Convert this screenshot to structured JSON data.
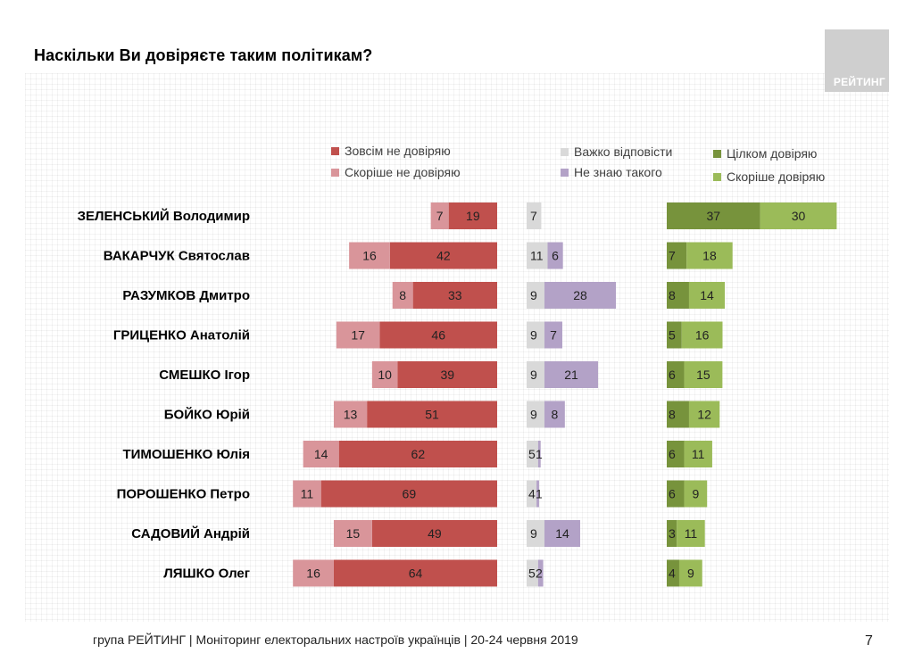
{
  "page_title": "Наскільки Ви довіряєте таким політикам?",
  "logo_text": "РЕЙТИНГ",
  "footer": "група РЕЙТИНГ | Моніторинг електоральних настроїв українців | 20-24 червня 2019",
  "page_number": "7",
  "legend": {
    "full_distrust": "Зовсім не довіряю",
    "rather_distrust": "Скоріше не довіряю",
    "hard_to_say": "Важко відповісти",
    "dont_know": "Не знаю такого",
    "full_trust": "Цілком довіряю",
    "rather_trust": "Скоріше довіряю"
  },
  "colors": {
    "full_distrust": "#c0504d",
    "rather_distrust": "#d9959a",
    "hard_to_say": "#d9d9d9",
    "dont_know": "#b3a2c7",
    "full_trust": "#77933c",
    "rather_trust": "#9bbb59"
  },
  "chart_data": {
    "type": "bar",
    "categories": [
      "ЗЕЛЕНСЬКИЙ Володимир",
      "ВАКАРЧУК Святослав",
      "РАЗУМКОВ Дмитро",
      "ГРИЦЕНКО Анатолій",
      "СМЕШКО Ігор",
      "БОЙКО Юрій",
      "ТИМОШЕНКО Юлія",
      "ПОРОШЕНКО Петро",
      "САДОВИЙ Андрій",
      "ЛЯШКО Олег"
    ],
    "series": [
      {
        "name": "Зовсім не довіряю",
        "key": "full_distrust",
        "values": [
          19,
          42,
          33,
          46,
          39,
          51,
          62,
          69,
          49,
          64
        ]
      },
      {
        "name": "Скоріше не довіряю",
        "key": "rather_distrust",
        "values": [
          7,
          16,
          8,
          17,
          10,
          13,
          14,
          11,
          15,
          16
        ]
      },
      {
        "name": "Важко відповісти",
        "key": "hard_to_say",
        "values": [
          7,
          11,
          9,
          9,
          9,
          9,
          5,
          4,
          9,
          5
        ]
      },
      {
        "name": "Не знаю такого",
        "key": "dont_know",
        "values": [
          0,
          6,
          28,
          7,
          21,
          8,
          1,
          1,
          14,
          2
        ]
      },
      {
        "name": "Цілком довіряю",
        "key": "full_trust",
        "values": [
          37,
          7,
          8,
          5,
          6,
          8,
          6,
          6,
          3,
          4
        ]
      },
      {
        "name": "Скоріше довіряю",
        "key": "rather_trust",
        "values": [
          30,
          18,
          14,
          16,
          15,
          12,
          11,
          9,
          11,
          9
        ]
      }
    ],
    "unit": "%"
  }
}
